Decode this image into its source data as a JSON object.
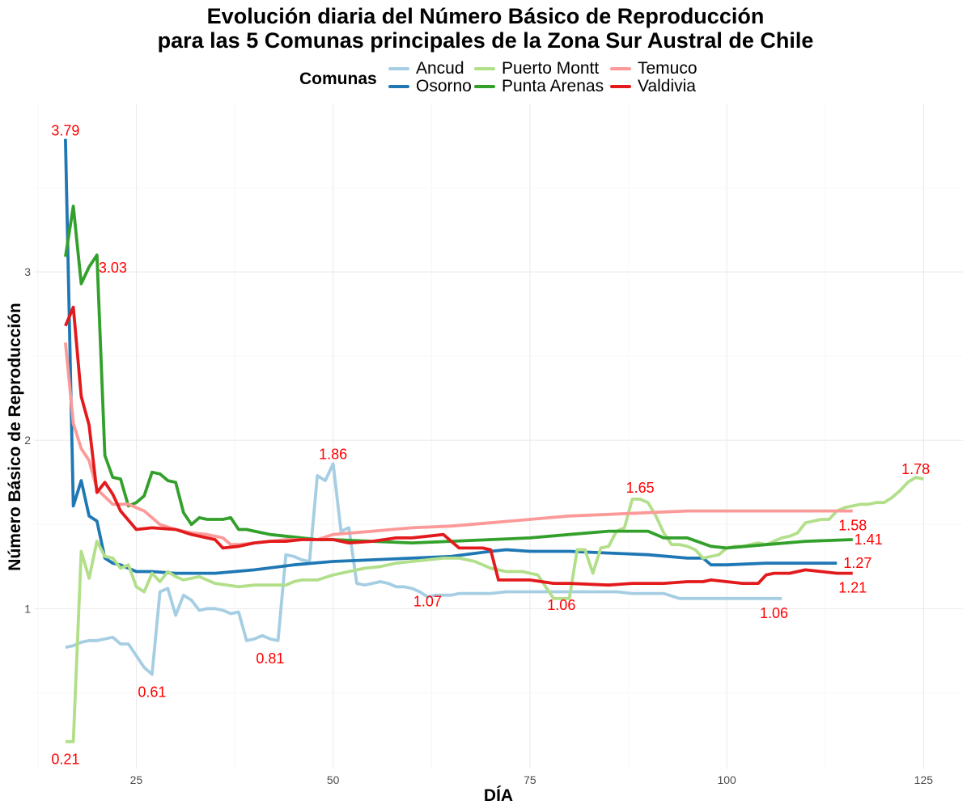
{
  "chart_data": {
    "type": "line",
    "title": "Evolución diaria del Número Básico de Reproducción",
    "subtitle": "para las 5 Comunas principales de la Zona Sur Austral de Chile",
    "xlabel": "DÍA",
    "ylabel": "Número Básico de Reproducción",
    "xlim": [
      12,
      130
    ],
    "ylim": [
      0.05,
      4.0
    ],
    "x_ticks": [
      25,
      50,
      75,
      100,
      125
    ],
    "y_ticks": [
      1,
      2,
      3
    ],
    "grid": true,
    "legend": {
      "title": "Comunas",
      "position": "top"
    },
    "series": [
      {
        "name": "Ancud",
        "color": "#a6cee3",
        "x": [
          16,
          17,
          18,
          19,
          20,
          21,
          22,
          23,
          24,
          25,
          26,
          27,
          28,
          29,
          30,
          31,
          32,
          33,
          34,
          35,
          36,
          37,
          38,
          39,
          40,
          41,
          42,
          43,
          44,
          45,
          46,
          47,
          48,
          49,
          50,
          51,
          52,
          53,
          54,
          55,
          56,
          57,
          58,
          59,
          60,
          61,
          62,
          63,
          64,
          65,
          66,
          67,
          68,
          69,
          70,
          72,
          74,
          76,
          78,
          80,
          82,
          84,
          86,
          88,
          90,
          92,
          94,
          96,
          98,
          100,
          102,
          104,
          106,
          107
        ],
        "y": [
          0.77,
          0.78,
          0.8,
          0.81,
          0.81,
          0.82,
          0.83,
          0.79,
          0.79,
          0.72,
          0.65,
          0.61,
          1.1,
          1.12,
          0.96,
          1.08,
          1.05,
          0.99,
          1.0,
          1.0,
          0.99,
          0.97,
          0.98,
          0.81,
          0.82,
          0.84,
          0.82,
          0.81,
          1.32,
          1.31,
          1.29,
          1.28,
          1.79,
          1.76,
          1.86,
          1.46,
          1.48,
          1.15,
          1.14,
          1.15,
          1.16,
          1.15,
          1.13,
          1.13,
          1.12,
          1.1,
          1.07,
          1.08,
          1.08,
          1.08,
          1.09,
          1.09,
          1.09,
          1.09,
          1.09,
          1.1,
          1.1,
          1.1,
          1.1,
          1.1,
          1.1,
          1.1,
          1.1,
          1.09,
          1.09,
          1.09,
          1.06,
          1.06,
          1.06,
          1.06,
          1.06,
          1.06,
          1.06,
          1.06
        ]
      },
      {
        "name": "Osorno",
        "color": "#1f78b4",
        "x": [
          16,
          17,
          18,
          19,
          20,
          21,
          22,
          23,
          25,
          27,
          30,
          35,
          40,
          45,
          50,
          55,
          60,
          65,
          70,
          72,
          75,
          80,
          85,
          90,
          95,
          97,
          98,
          100,
          105,
          110,
          114
        ],
        "y": [
          3.79,
          1.61,
          1.76,
          1.55,
          1.52,
          1.3,
          1.27,
          1.26,
          1.22,
          1.22,
          1.21,
          1.21,
          1.23,
          1.26,
          1.28,
          1.29,
          1.3,
          1.31,
          1.34,
          1.35,
          1.34,
          1.34,
          1.33,
          1.32,
          1.3,
          1.3,
          1.26,
          1.26,
          1.27,
          1.27,
          1.27
        ]
      },
      {
        "name": "Puerto Montt",
        "color": "#b2df8a",
        "x": [
          16,
          17,
          18,
          19,
          20,
          21,
          22,
          23,
          24,
          25,
          26,
          27,
          28,
          29,
          30,
          31,
          33,
          35,
          38,
          40,
          42,
          44,
          45,
          46,
          48,
          50,
          52,
          54,
          56,
          58,
          60,
          62,
          64,
          66,
          68,
          70,
          72,
          74,
          76,
          78,
          79,
          80,
          81,
          82,
          83,
          84,
          85,
          86,
          87,
          88,
          89,
          90,
          91,
          92,
          93,
          94,
          95,
          96,
          97,
          98,
          99,
          100,
          101,
          102,
          103,
          104,
          105,
          106,
          107,
          108,
          109,
          110,
          111,
          112,
          113,
          114,
          115,
          116,
          117,
          118,
          119,
          120,
          121,
          122,
          123,
          124,
          125
        ],
        "y": [
          0.21,
          0.21,
          1.34,
          1.18,
          1.4,
          1.31,
          1.3,
          1.24,
          1.26,
          1.13,
          1.1,
          1.21,
          1.16,
          1.22,
          1.19,
          1.17,
          1.19,
          1.15,
          1.13,
          1.14,
          1.14,
          1.14,
          1.16,
          1.17,
          1.17,
          1.2,
          1.22,
          1.24,
          1.25,
          1.27,
          1.28,
          1.29,
          1.3,
          1.3,
          1.28,
          1.24,
          1.22,
          1.22,
          1.2,
          1.06,
          1.06,
          1.06,
          1.35,
          1.35,
          1.21,
          1.36,
          1.37,
          1.46,
          1.48,
          1.65,
          1.65,
          1.63,
          1.55,
          1.45,
          1.38,
          1.38,
          1.37,
          1.35,
          1.3,
          1.31,
          1.32,
          1.36,
          1.37,
          1.37,
          1.38,
          1.39,
          1.38,
          1.4,
          1.42,
          1.43,
          1.45,
          1.51,
          1.52,
          1.53,
          1.53,
          1.58,
          1.6,
          1.61,
          1.62,
          1.62,
          1.63,
          1.63,
          1.66,
          1.7,
          1.75,
          1.78,
          1.77
        ]
      },
      {
        "name": "Punta Arenas",
        "color": "#33a02c",
        "x": [
          16,
          17,
          18,
          19,
          20,
          21,
          22,
          23,
          24,
          25,
          26,
          27,
          28,
          29,
          30,
          31,
          32,
          33,
          34,
          35,
          36,
          37,
          38,
          39,
          40,
          42,
          44,
          46,
          48,
          50,
          55,
          60,
          65,
          70,
          75,
          80,
          85,
          90,
          92,
          95,
          98,
          100,
          105,
          110,
          116
        ],
        "y": [
          3.09,
          3.39,
          2.93,
          3.03,
          3.1,
          1.91,
          1.78,
          1.77,
          1.61,
          1.63,
          1.67,
          1.81,
          1.8,
          1.76,
          1.75,
          1.57,
          1.5,
          1.54,
          1.53,
          1.53,
          1.53,
          1.54,
          1.47,
          1.47,
          1.46,
          1.44,
          1.43,
          1.42,
          1.41,
          1.41,
          1.4,
          1.39,
          1.4,
          1.41,
          1.42,
          1.44,
          1.46,
          1.46,
          1.42,
          1.42,
          1.37,
          1.36,
          1.38,
          1.4,
          1.41
        ]
      },
      {
        "name": "Temuco",
        "color": "#fb9a99",
        "x": [
          16,
          17,
          18,
          19,
          20,
          22,
          24,
          26,
          28,
          30,
          32,
          34,
          36,
          37,
          38,
          40,
          42,
          44,
          46,
          48,
          50,
          55,
          60,
          65,
          70,
          75,
          80,
          85,
          90,
          95,
          100,
          105,
          110,
          116
        ],
        "y": [
          2.58,
          2.1,
          1.95,
          1.88,
          1.71,
          1.62,
          1.62,
          1.58,
          1.5,
          1.47,
          1.45,
          1.44,
          1.42,
          1.38,
          1.38,
          1.39,
          1.4,
          1.41,
          1.41,
          1.41,
          1.44,
          1.46,
          1.48,
          1.49,
          1.51,
          1.53,
          1.55,
          1.56,
          1.57,
          1.58,
          1.58,
          1.58,
          1.58,
          1.58
        ]
      },
      {
        "name": "Valdivia",
        "color": "#e31a1c",
        "x": [
          16,
          17,
          18,
          19,
          20,
          21,
          22,
          23,
          25,
          27,
          30,
          32,
          35,
          36,
          38,
          40,
          42,
          44,
          46,
          48,
          50,
          52,
          55,
          58,
          60,
          62,
          64,
          66,
          67,
          69,
          70,
          71,
          72,
          75,
          78,
          80,
          85,
          88,
          90,
          92,
          95,
          97,
          98,
          100,
          102,
          103,
          104,
          105,
          106,
          107,
          108,
          110,
          112,
          114,
          116
        ],
        "y": [
          2.68,
          2.79,
          2.26,
          2.09,
          1.69,
          1.75,
          1.68,
          1.58,
          1.47,
          1.48,
          1.47,
          1.44,
          1.41,
          1.36,
          1.37,
          1.39,
          1.4,
          1.4,
          1.41,
          1.41,
          1.41,
          1.39,
          1.4,
          1.42,
          1.42,
          1.43,
          1.44,
          1.36,
          1.36,
          1.36,
          1.35,
          1.17,
          1.17,
          1.17,
          1.15,
          1.15,
          1.14,
          1.15,
          1.15,
          1.15,
          1.16,
          1.16,
          1.17,
          1.16,
          1.15,
          1.15,
          1.15,
          1.2,
          1.21,
          1.21,
          1.21,
          1.23,
          1.22,
          1.21,
          1.21
        ]
      }
    ],
    "annotations": [
      {
        "x": 16,
        "y": 3.79,
        "text": "3.79",
        "anchor": "middle",
        "dy": -4
      },
      {
        "x": 20,
        "y": 3.03,
        "text": "3.03",
        "anchor": "start",
        "dx": 2,
        "dy": 7
      },
      {
        "x": 16,
        "y": 0.21,
        "text": "0.21",
        "anchor": "middle",
        "dy": 28
      },
      {
        "x": 27,
        "y": 0.61,
        "text": "0.61",
        "anchor": "middle",
        "dy": 28
      },
      {
        "x": 42,
        "y": 0.81,
        "text": "0.81",
        "anchor": "middle",
        "dy": 28
      },
      {
        "x": 50,
        "y": 1.86,
        "text": "1.86",
        "anchor": "middle",
        "dy": -6
      },
      {
        "x": 62,
        "y": 1.07,
        "text": "1.07",
        "anchor": "middle",
        "dy": 12
      },
      {
        "x": 79,
        "y": 1.06,
        "text": "1.06",
        "anchor": "middle",
        "dy": 14
      },
      {
        "x": 106,
        "y": 1.06,
        "text": "1.06",
        "anchor": "middle",
        "dy": 24
      },
      {
        "x": 89,
        "y": 1.65,
        "text": "1.65",
        "anchor": "middle",
        "dy": -8
      },
      {
        "x": 124,
        "y": 1.78,
        "text": "1.78",
        "anchor": "middle",
        "dy": -4
      },
      {
        "x": 116,
        "y": 1.58,
        "text": "1.58",
        "anchor": "middle",
        "dy": 24
      },
      {
        "x": 116,
        "y": 1.41,
        "text": "1.41",
        "anchor": "start",
        "dx": 2,
        "dy": 6
      },
      {
        "x": 114,
        "y": 1.27,
        "text": "1.27",
        "anchor": "start",
        "dx": 8,
        "dy": 6
      },
      {
        "x": 116,
        "y": 1.21,
        "text": "1.21",
        "anchor": "middle",
        "dy": 24
      }
    ]
  }
}
